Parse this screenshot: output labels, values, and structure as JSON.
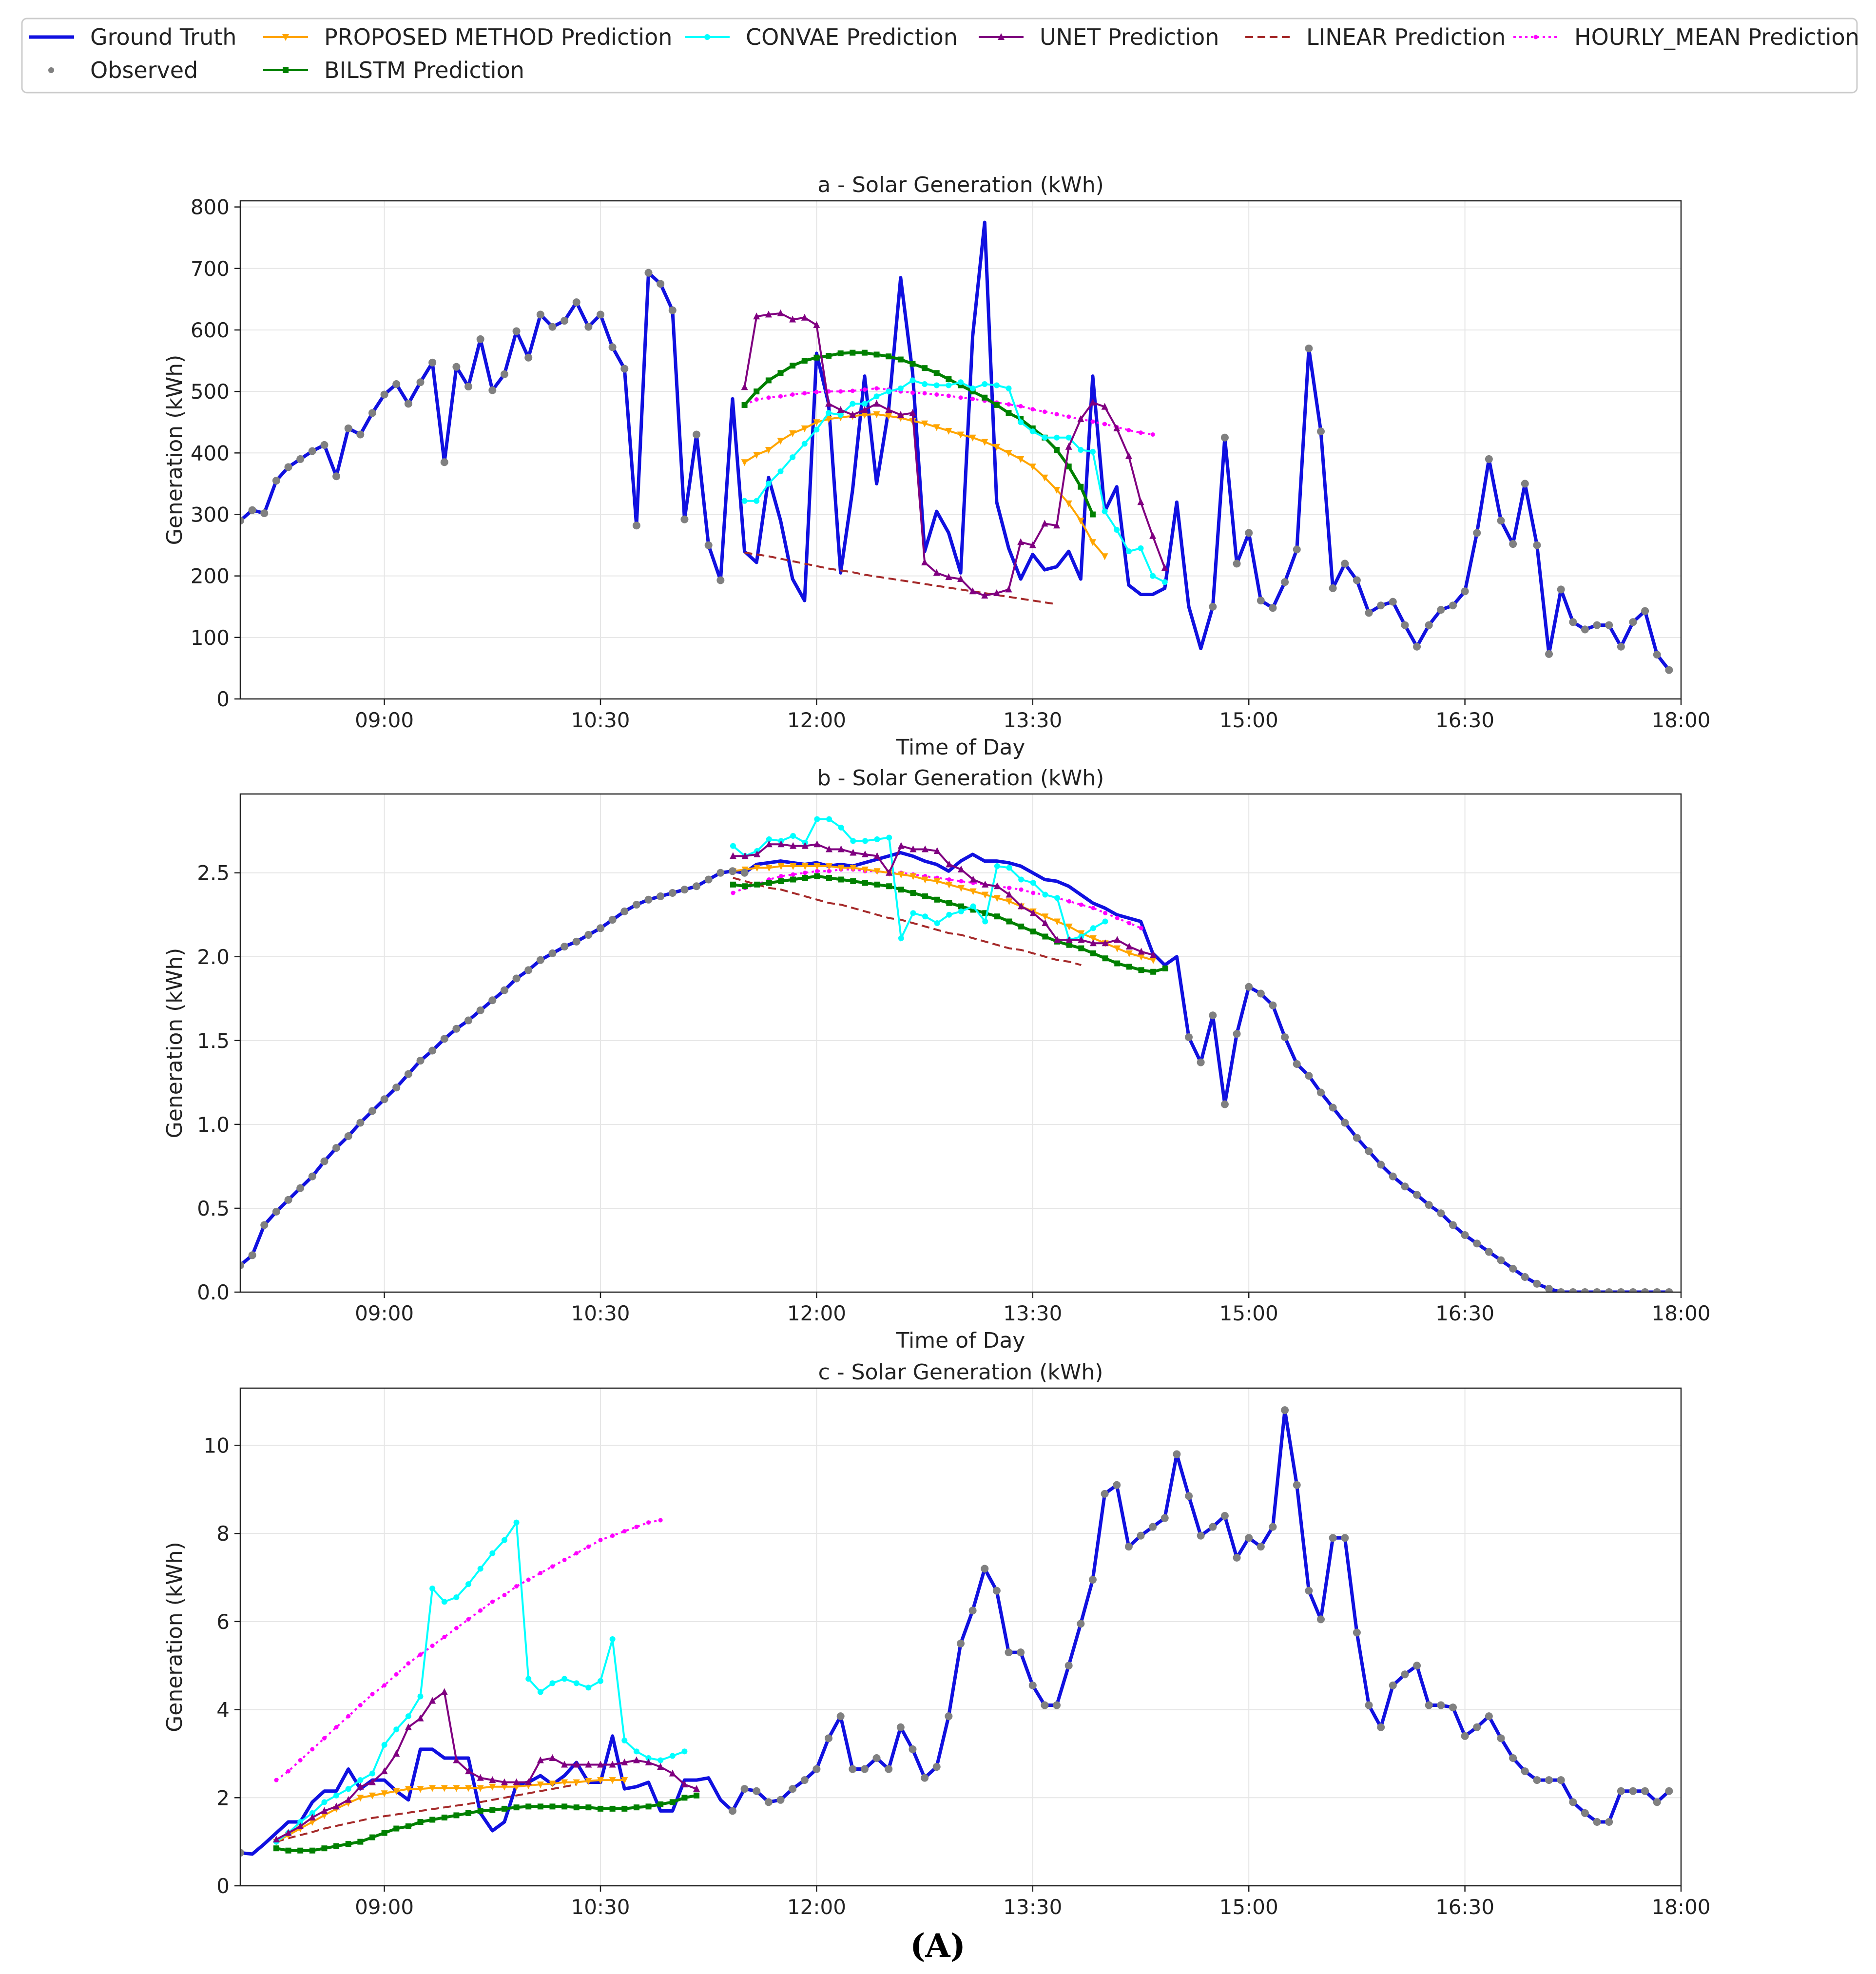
{
  "figure": {
    "label": "(A)"
  },
  "legend": [
    {
      "key": "truth",
      "label": "Ground Truth"
    },
    {
      "key": "observed",
      "label": "Observed"
    },
    {
      "key": "proposed",
      "label": "PROPOSED METHOD Prediction"
    },
    {
      "key": "bilstm",
      "label": "BILSTM Prediction"
    },
    {
      "key": "convae",
      "label": "CONVAE Prediction"
    },
    {
      "key": "unet",
      "label": "UNET Prediction"
    },
    {
      "key": "linear",
      "label": "LINEAR Prediction"
    },
    {
      "key": "hourly",
      "label": "HOURLY_MEAN Prediction"
    }
  ],
  "styles": {
    "truth": {
      "color": "#1010e0"
    },
    "observed": {
      "color": "#808080"
    },
    "proposed": {
      "color": "#ffa500",
      "marker": "triangle-down"
    },
    "bilstm": {
      "color": "#008000",
      "marker": "square"
    },
    "convae": {
      "color": "#00ffff",
      "marker": "circle"
    },
    "unet": {
      "color": "#800080",
      "marker": "triangle-up"
    },
    "linear": {
      "color": "#a52a2a",
      "dash": "dashed"
    },
    "hourly": {
      "color": "#ff00ff",
      "dash": "dotted",
      "marker": "dot"
    }
  },
  "chart_data": [
    {
      "type": "line",
      "title": "a - Solar Generation (kWh)",
      "xlabel": "Time of Day",
      "ylabel": "Generation (kWh)",
      "xlim": [
        8.0,
        18.0
      ],
      "ylim": [
        0,
        810
      ],
      "yticks": [
        0,
        100,
        200,
        300,
        400,
        500,
        600,
        700,
        800
      ],
      "ytick_labels": [
        "0",
        "100",
        "200",
        "300",
        "400",
        "500",
        "600",
        "700",
        "800"
      ],
      "xticks": [
        9.0,
        10.5,
        12.0,
        13.5,
        15.0,
        16.5,
        18.0
      ],
      "xtick_labels": [
        "09:00",
        "10:30",
        "12:00",
        "13:30",
        "15:00",
        "16:30",
        "18:00"
      ],
      "truth": {
        "start": 8.0,
        "step": 0.0833333,
        "values": [
          290,
          307,
          302,
          355,
          377,
          390,
          403,
          413,
          362,
          440,
          430,
          465,
          495,
          512,
          480,
          515,
          547,
          385,
          540,
          508,
          585,
          502,
          528,
          598,
          555,
          625,
          605,
          615,
          645,
          605,
          625,
          572,
          537,
          282,
          693,
          675,
          632,
          292,
          430,
          250,
          193,
          488,
          240,
          222,
          360,
          290,
          195,
          160,
          562,
          480,
          205,
          340,
          525,
          350,
          470,
          685,
          530,
          240,
          305,
          270,
          205,
          590,
          775,
          320,
          245,
          195,
          235,
          210,
          215,
          240,
          195,
          525,
          305,
          345,
          185,
          170,
          170,
          180,
          320,
          150,
          82,
          150,
          425,
          220,
          270,
          160,
          148,
          190,
          243,
          570,
          435,
          180,
          220,
          193,
          140,
          152,
          158,
          120,
          85,
          120,
          145,
          152,
          175,
          270,
          390,
          290,
          252,
          350,
          250,
          73,
          178,
          125,
          113,
          120,
          120,
          85,
          125,
          143,
          72,
          47
        ],
        "observed_break": [
          41,
          80
        ],
        "show_x_label": true
      },
      "predictions": {
        "start": 11.5,
        "proposed": [
          385,
          397,
          405,
          420,
          432,
          440,
          450,
          455,
          458,
          460,
          462,
          463,
          460,
          457,
          452,
          448,
          442,
          436,
          430,
          425,
          418,
          410,
          400,
          390,
          378,
          360,
          340,
          318,
          290,
          255,
          232
        ],
        "bilstm": [
          478,
          500,
          518,
          530,
          542,
          550,
          555,
          558,
          562,
          563,
          563,
          560,
          557,
          552,
          545,
          538,
          530,
          520,
          510,
          500,
          490,
          478,
          465,
          455,
          440,
          425,
          405,
          378,
          345,
          300
        ],
        "convae": [
          322,
          322,
          350,
          370,
          393,
          415,
          438,
          465,
          462,
          480,
          480,
          492,
          500,
          505,
          518,
          512,
          510,
          510,
          515,
          505,
          512,
          510,
          505,
          450,
          435,
          425,
          425,
          425,
          405,
          402,
          305,
          275,
          240,
          245,
          200,
          190
        ],
        "unet": [
          507,
          622,
          625,
          627,
          617,
          620,
          608,
          480,
          470,
          462,
          470,
          480,
          470,
          462,
          465,
          222,
          205,
          198,
          195,
          175,
          168,
          172,
          178,
          255,
          250,
          285,
          282,
          410,
          455,
          482,
          475,
          440,
          395,
          320,
          265,
          213
        ],
        "linear": [
          238,
          235,
          232,
          228,
          224,
          220,
          216,
          212,
          209,
          206,
          202,
          199,
          196,
          193,
          190,
          187,
          184,
          181,
          178,
          175,
          172,
          169,
          166,
          163,
          160,
          157,
          154
        ],
        "hourly": [
          478,
          487,
          490,
          492,
          495,
          497,
          499,
          500,
          500,
          501,
          503,
          505,
          503,
          500,
          498,
          497,
          495,
          493,
          490,
          488,
          485,
          482,
          479,
          476,
          471,
          467,
          463,
          459,
          455,
          451,
          447,
          442,
          437,
          433,
          430
        ]
      }
    },
    {
      "type": "line",
      "title": "b - Solar Generation (kWh)",
      "xlabel": "Time of Day",
      "ylabel": "Generation (kWh)",
      "xlim": [
        8.0,
        18.0
      ],
      "ylim": [
        0,
        2.97
      ],
      "yticks": [
        0,
        0.5,
        1.0,
        1.5,
        2.0,
        2.5
      ],
      "ytick_labels": [
        "0.0",
        "0.5",
        "1.0",
        "1.5",
        "2.0",
        "2.5"
      ],
      "xticks": [
        9.0,
        10.5,
        12.0,
        13.5,
        15.0,
        16.5,
        18.0
      ],
      "xtick_labels": [
        "09:00",
        "10:30",
        "12:00",
        "13:30",
        "15:00",
        "16:30",
        "18:00"
      ],
      "truth": {
        "start": 8.0,
        "step": 0.0833333,
        "values": [
          0.16,
          0.22,
          0.4,
          0.48,
          0.55,
          0.62,
          0.69,
          0.78,
          0.86,
          0.93,
          1.01,
          1.08,
          1.15,
          1.22,
          1.3,
          1.38,
          1.44,
          1.51,
          1.57,
          1.62,
          1.68,
          1.74,
          1.8,
          1.87,
          1.92,
          1.98,
          2.02,
          2.06,
          2.09,
          2.13,
          2.17,
          2.22,
          2.27,
          2.31,
          2.34,
          2.36,
          2.38,
          2.4,
          2.42,
          2.46,
          2.5,
          2.51,
          2.5,
          2.55,
          2.56,
          2.57,
          2.56,
          2.55,
          2.56,
          2.54,
          2.55,
          2.54,
          2.56,
          2.58,
          2.6,
          2.62,
          2.6,
          2.57,
          2.55,
          2.51,
          2.57,
          2.61,
          2.57,
          2.57,
          2.56,
          2.54,
          2.5,
          2.46,
          2.45,
          2.42,
          2.37,
          2.32,
          2.29,
          2.25,
          2.23,
          2.21,
          2.02,
          1.95,
          2.0,
          1.52,
          1.37,
          1.65,
          1.12,
          1.54,
          1.82,
          1.78,
          1.71,
          1.52,
          1.36,
          1.29,
          1.19,
          1.1,
          1.01,
          0.92,
          0.84,
          0.76,
          0.69,
          0.63,
          0.58,
          0.52,
          0.47,
          0.4,
          0.34,
          0.29,
          0.24,
          0.19,
          0.14,
          0.09,
          0.05,
          0.02,
          0.0,
          0.0,
          0.0,
          0.0,
          0.0,
          0.0,
          0.0,
          0.0,
          0.0,
          0.0
        ],
        "observed_break": [
          43,
          78
        ],
        "show_x_label": true
      },
      "predictions": {
        "start": 11.42,
        "proposed": [
          2.51,
          2.52,
          2.53,
          2.53,
          2.54,
          2.54,
          2.54,
          2.54,
          2.54,
          2.53,
          2.53,
          2.52,
          2.51,
          2.5,
          2.49,
          2.48,
          2.46,
          2.45,
          2.43,
          2.41,
          2.39,
          2.37,
          2.35,
          2.33,
          2.3,
          2.27,
          2.24,
          2.21,
          2.18,
          2.14,
          2.11,
          2.08,
          2.05,
          2.02,
          2.0,
          1.98
        ],
        "bilstm": [
          2.43,
          2.42,
          2.43,
          2.44,
          2.45,
          2.46,
          2.47,
          2.48,
          2.47,
          2.46,
          2.45,
          2.44,
          2.43,
          2.42,
          2.4,
          2.38,
          2.36,
          2.34,
          2.32,
          2.3,
          2.28,
          2.26,
          2.24,
          2.21,
          2.18,
          2.15,
          2.12,
          2.09,
          2.07,
          2.05,
          2.02,
          1.99,
          1.96,
          1.94,
          1.92,
          1.91,
          1.93
        ],
        "convae": [
          2.66,
          2.6,
          2.63,
          2.7,
          2.69,
          2.72,
          2.68,
          2.82,
          2.82,
          2.77,
          2.69,
          2.69,
          2.7,
          2.71,
          2.11,
          2.26,
          2.24,
          2.2,
          2.25,
          2.27,
          2.3,
          2.21,
          2.54,
          2.53,
          2.46,
          2.44,
          2.37,
          2.35,
          2.1,
          2.12,
          2.17,
          2.21
        ],
        "unet": [
          2.6,
          2.6,
          2.61,
          2.67,
          2.67,
          2.66,
          2.66,
          2.67,
          2.64,
          2.64,
          2.62,
          2.61,
          2.6,
          2.5,
          2.66,
          2.64,
          2.64,
          2.63,
          2.55,
          2.52,
          2.46,
          2.43,
          2.42,
          2.37,
          2.3,
          2.26,
          2.2,
          2.1,
          2.1,
          2.1,
          2.08,
          2.08,
          2.1,
          2.06,
          2.03,
          2.01
        ],
        "linear": [
          2.47,
          2.45,
          2.43,
          2.41,
          2.4,
          2.38,
          2.36,
          2.34,
          2.32,
          2.31,
          2.29,
          2.27,
          2.25,
          2.23,
          2.22,
          2.2,
          2.18,
          2.16,
          2.14,
          2.13,
          2.11,
          2.09,
          2.07,
          2.05,
          2.04,
          2.02,
          2.0,
          1.98,
          1.97,
          1.95
        ],
        "hourly": [
          2.38,
          2.41,
          2.43,
          2.46,
          2.48,
          2.49,
          2.5,
          2.51,
          2.51,
          2.52,
          2.52,
          2.51,
          2.51,
          2.5,
          2.5,
          2.49,
          2.48,
          2.47,
          2.46,
          2.45,
          2.44,
          2.43,
          2.42,
          2.41,
          2.4,
          2.38,
          2.37,
          2.35,
          2.33,
          2.31,
          2.29,
          2.26,
          2.23,
          2.2,
          2.17
        ]
      }
    },
    {
      "type": "line",
      "title": "c - Solar Generation (kWh)",
      "xlabel": "",
      "ylabel": "Generation (kWh)",
      "xlim": [
        8.0,
        18.0
      ],
      "ylim": [
        0,
        11.3
      ],
      "yticks": [
        0,
        2,
        4,
        6,
        8,
        10
      ],
      "ytick_labels": [
        "0",
        "2",
        "4",
        "6",
        "8",
        "10"
      ],
      "xticks": [
        9.0,
        10.5,
        12.0,
        13.5,
        15.0,
        16.5,
        18.0
      ],
      "xtick_labels": [
        "09:00",
        "10:30",
        "12:00",
        "13:30",
        "15:00",
        "16:30",
        "18:00"
      ],
      "truth": {
        "start": 8.0,
        "step": 0.0833333,
        "values": [
          0.75,
          0.72,
          0.95,
          1.2,
          1.45,
          1.45,
          1.9,
          2.15,
          2.15,
          2.65,
          2.2,
          2.4,
          2.4,
          2.15,
          1.95,
          3.1,
          3.1,
          2.9,
          2.9,
          2.9,
          1.65,
          1.25,
          1.45,
          2.3,
          2.35,
          2.5,
          2.3,
          2.5,
          2.8,
          2.35,
          2.35,
          3.4,
          2.2,
          2.25,
          2.35,
          1.7,
          1.7,
          2.4,
          2.4,
          2.45,
          1.95,
          1.7,
          2.2,
          2.15,
          1.9,
          1.95,
          2.2,
          2.4,
          2.65,
          3.35,
          3.85,
          2.65,
          2.65,
          2.9,
          2.65,
          3.6,
          3.1,
          2.45,
          2.7,
          3.85,
          5.5,
          6.25,
          7.2,
          6.7,
          5.3,
          5.3,
          4.55,
          4.1,
          4.1,
          5.0,
          5.95,
          6.95,
          8.9,
          9.1,
          7.7,
          7.95,
          8.15,
          8.35,
          9.8,
          8.85,
          7.95,
          8.15,
          8.4,
          7.45,
          7.9,
          7.7,
          8.15,
          10.8,
          9.1,
          6.7,
          6.05,
          7.9,
          7.9,
          5.75,
          4.1,
          3.6,
          4.55,
          4.8,
          5.0,
          4.1,
          4.1,
          4.05,
          3.4,
          3.6,
          3.85,
          3.35,
          2.9,
          2.6,
          2.4,
          2.4,
          2.4,
          1.9,
          1.65,
          1.45,
          1.45,
          2.15,
          2.15,
          2.15,
          1.9,
          2.15
        ],
        "observed_break": [
          1,
          40
        ],
        "show_x_label": false
      },
      "predictions": {
        "start": 8.25,
        "proposed": [
          1.0,
          1.15,
          1.3,
          1.45,
          1.6,
          1.75,
          1.88,
          2.0,
          2.05,
          2.1,
          2.15,
          2.2,
          2.2,
          2.22,
          2.22,
          2.22,
          2.22,
          2.22,
          2.25,
          2.25,
          2.25,
          2.28,
          2.3,
          2.32,
          2.35,
          2.35,
          2.38,
          2.4,
          2.4,
          2.4
        ],
        "bilstm": [
          0.85,
          0.8,
          0.8,
          0.8,
          0.85,
          0.9,
          0.95,
          1.0,
          1.1,
          1.2,
          1.3,
          1.35,
          1.45,
          1.5,
          1.55,
          1.6,
          1.65,
          1.7,
          1.72,
          1.75,
          1.78,
          1.8,
          1.8,
          1.8,
          1.8,
          1.78,
          1.78,
          1.75,
          1.75,
          1.75,
          1.78,
          1.8,
          1.85,
          1.9,
          2.0,
          2.05
        ],
        "convae": [
          1.0,
          1.2,
          1.45,
          1.65,
          1.9,
          2.05,
          2.2,
          2.4,
          2.55,
          3.2,
          3.55,
          3.85,
          4.3,
          6.75,
          6.45,
          6.55,
          6.85,
          7.2,
          7.55,
          7.85,
          8.25,
          4.7,
          4.4,
          4.6,
          4.7,
          4.6,
          4.5,
          4.65,
          5.6,
          3.3,
          3.05,
          2.9,
          2.85,
          2.95,
          3.05
        ],
        "unet": [
          1.05,
          1.2,
          1.35,
          1.55,
          1.7,
          1.8,
          1.95,
          2.25,
          2.35,
          2.6,
          3.0,
          3.6,
          3.8,
          4.2,
          4.4,
          2.85,
          2.6,
          2.45,
          2.4,
          2.35,
          2.35,
          2.35,
          2.85,
          2.9,
          2.75,
          2.75,
          2.75,
          2.75,
          2.75,
          2.8,
          2.85,
          2.8,
          2.7,
          2.55,
          2.3,
          2.2
        ],
        "linear": [
          1.0,
          1.08,
          1.15,
          1.22,
          1.3,
          1.36,
          1.42,
          1.48,
          1.54,
          1.58,
          1.62,
          1.66,
          1.7,
          1.74,
          1.78,
          1.82,
          1.86,
          1.9,
          1.95,
          2.0,
          2.05,
          2.1,
          2.15,
          2.2,
          2.25,
          2.3
        ],
        "hourly": [
          2.4,
          2.6,
          2.85,
          3.1,
          3.35,
          3.6,
          3.85,
          4.1,
          4.35,
          4.55,
          4.8,
          5.05,
          5.25,
          5.45,
          5.65,
          5.85,
          6.05,
          6.25,
          6.45,
          6.6,
          6.8,
          6.95,
          7.1,
          7.25,
          7.4,
          7.55,
          7.7,
          7.85,
          7.95,
          8.05,
          8.15,
          8.25,
          8.3
        ]
      }
    }
  ]
}
